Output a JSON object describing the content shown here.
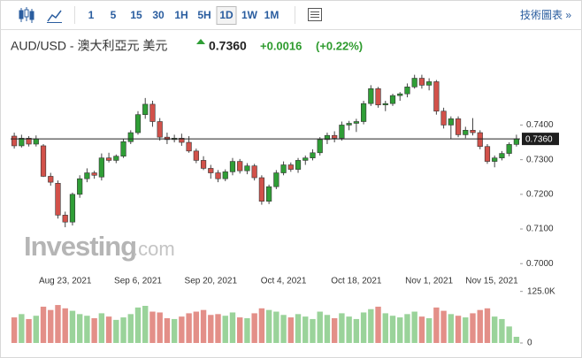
{
  "toolbar": {
    "intervals": [
      "1",
      "5",
      "15",
      "30",
      "1H",
      "5H",
      "1D",
      "1W",
      "1M"
    ],
    "active": 6,
    "link": "技術圖表 »"
  },
  "header": {
    "title": "AUD/USD - 澳大利亞元 美元",
    "price": "0.7360",
    "change": "+0.0016",
    "change_pct": "(+0.22%)"
  },
  "watermark": {
    "brand": "Investing",
    "suffix": ".com"
  },
  "chart_data": {
    "type": "candlestick",
    "up_color": "#2f9e36",
    "down_color": "#d2514a",
    "volume_up_color": "#9ad39a",
    "volume_down_color": "#e38f88",
    "categories": [
      null,
      null,
      null,
      null,
      null,
      null,
      null,
      "Aug 23, 2021",
      null,
      null,
      null,
      null,
      null,
      null,
      null,
      null,
      null,
      "Sep 6, 2021",
      null,
      null,
      null,
      null,
      null,
      null,
      null,
      null,
      null,
      "Sep 20, 2021",
      null,
      null,
      null,
      null,
      null,
      null,
      null,
      null,
      null,
      "Oct 4, 2021",
      null,
      null,
      null,
      null,
      null,
      null,
      null,
      null,
      null,
      "Oct 18, 2021",
      null,
      null,
      null,
      null,
      null,
      null,
      null,
      null,
      null,
      "Nov 1, 2021",
      null,
      null,
      null,
      null,
      null,
      null,
      null,
      null,
      null,
      "Nov 15, 2021",
      null,
      null
    ],
    "open": [
      0.7368,
      0.734,
      0.7362,
      0.7345,
      0.734,
      0.7252,
      0.7232,
      0.714,
      0.712,
      0.72,
      0.7245,
      0.7262,
      0.725,
      0.7305,
      0.7298,
      0.731,
      0.7352,
      0.7378,
      0.743,
      0.746,
      0.741,
      0.7365,
      0.7358,
      0.7362,
      0.735,
      0.7325,
      0.7298,
      0.7275,
      0.7262,
      0.7245,
      0.7265,
      0.7295,
      0.7268,
      0.7282,
      0.7248,
      0.718,
      0.7222,
      0.7262,
      0.7285,
      0.7272,
      0.7298,
      0.7305,
      0.732,
      0.7358,
      0.737,
      0.7362,
      0.74,
      0.7405,
      0.741,
      0.7462,
      0.7505,
      0.7458,
      0.7462,
      0.7485,
      0.749,
      0.751,
      0.7535,
      0.7515,
      0.7525,
      0.744,
      0.74,
      0.7418,
      0.7372,
      0.7385,
      0.7378,
      0.7338,
      0.7295,
      0.7305,
      0.7318,
      0.7344
    ],
    "high": [
      0.7378,
      0.7372,
      0.7368,
      0.737,
      0.7345,
      0.7262,
      0.724,
      0.715,
      0.7205,
      0.7255,
      0.7275,
      0.7268,
      0.7318,
      0.732,
      0.7315,
      0.736,
      0.7385,
      0.744,
      0.7478,
      0.747,
      0.742,
      0.7378,
      0.7372,
      0.7375,
      0.7368,
      0.7332,
      0.731,
      0.7285,
      0.727,
      0.7272,
      0.7305,
      0.7302,
      0.729,
      0.7288,
      0.7255,
      0.7228,
      0.727,
      0.7295,
      0.7292,
      0.7305,
      0.7312,
      0.733,
      0.7365,
      0.7378,
      0.7382,
      0.741,
      0.7412,
      0.7418,
      0.747,
      0.7515,
      0.751,
      0.747,
      0.749,
      0.7495,
      0.752,
      0.7545,
      0.7545,
      0.7535,
      0.753,
      0.745,
      0.7425,
      0.7425,
      0.7395,
      0.742,
      0.7385,
      0.7345,
      0.7312,
      0.7325,
      0.735,
      0.7372
    ],
    "low": [
      0.7332,
      0.7335,
      0.7338,
      0.7338,
      0.725,
      0.7225,
      0.713,
      0.7105,
      0.711,
      0.719,
      0.7235,
      0.7245,
      0.724,
      0.7292,
      0.729,
      0.7305,
      0.7345,
      0.7372,
      0.7418,
      0.7395,
      0.7355,
      0.7345,
      0.735,
      0.734,
      0.732,
      0.729,
      0.727,
      0.7245,
      0.7235,
      0.7238,
      0.7255,
      0.726,
      0.7258,
      0.724,
      0.717,
      0.7172,
      0.7215,
      0.7255,
      0.7265,
      0.7262,
      0.7285,
      0.7298,
      0.7312,
      0.7345,
      0.735,
      0.7355,
      0.7385,
      0.738,
      0.7402,
      0.7455,
      0.745,
      0.744,
      0.7455,
      0.747,
      0.748,
      0.7505,
      0.7505,
      0.75,
      0.743,
      0.739,
      0.736,
      0.7365,
      0.7362,
      0.737,
      0.733,
      0.7288,
      0.7278,
      0.7298,
      0.731,
      0.7338
    ],
    "close": [
      0.734,
      0.7362,
      0.7345,
      0.736,
      0.7252,
      0.7235,
      0.714,
      0.712,
      0.72,
      0.7245,
      0.7262,
      0.7255,
      0.7305,
      0.7298,
      0.731,
      0.7352,
      0.7378,
      0.743,
      0.746,
      0.741,
      0.7365,
      0.7358,
      0.7362,
      0.735,
      0.7325,
      0.7298,
      0.7275,
      0.7262,
      0.7245,
      0.7265,
      0.7295,
      0.7268,
      0.7282,
      0.7248,
      0.718,
      0.7222,
      0.7262,
      0.7285,
      0.7272,
      0.7298,
      0.7305,
      0.732,
      0.7358,
      0.737,
      0.7362,
      0.74,
      0.7405,
      0.741,
      0.7462,
      0.7505,
      0.7458,
      0.7462,
      0.7485,
      0.749,
      0.751,
      0.7535,
      0.7515,
      0.7525,
      0.744,
      0.74,
      0.7418,
      0.7372,
      0.7385,
      0.7378,
      0.7338,
      0.7295,
      0.7305,
      0.7318,
      0.7344,
      0.736
    ],
    "volume": [
      62000,
      70000,
      58000,
      66000,
      88000,
      80000,
      92000,
      84000,
      78000,
      70000,
      66000,
      60000,
      72000,
      64000,
      56000,
      62000,
      70000,
      86000,
      90000,
      76000,
      74000,
      60000,
      58000,
      64000,
      72000,
      76000,
      80000,
      68000,
      70000,
      66000,
      74000,
      62000,
      60000,
      72000,
      84000,
      80000,
      76000,
      68000,
      62000,
      70000,
      64000,
      58000,
      76000,
      68000,
      60000,
      72000,
      64000,
      58000,
      74000,
      82000,
      88000,
      72000,
      66000,
      62000,
      70000,
      76000,
      64000,
      60000,
      86000,
      78000,
      70000,
      66000,
      62000,
      72000,
      80000,
      84000,
      64000,
      58000,
      40000,
      15000
    ],
    "ylim": [
      0.697,
      0.7595
    ],
    "yticks": [
      {
        "value": 0.7,
        "label": "0.7000"
      },
      {
        "value": 0.71,
        "label": "0.7100"
      },
      {
        "value": 0.72,
        "label": "0.7200"
      },
      {
        "value": 0.73,
        "label": "0.7300"
      },
      {
        "value": 0.74,
        "label": "0.7400"
      }
    ],
    "volume_ylim": [
      0,
      135000
    ],
    "volume_yticks": [
      0,
      {
        "value": 125000,
        "label": "125.0K"
      }
    ],
    "last_price": {
      "value": 0.736,
      "label": "0.7360"
    },
    "grid": false
  }
}
